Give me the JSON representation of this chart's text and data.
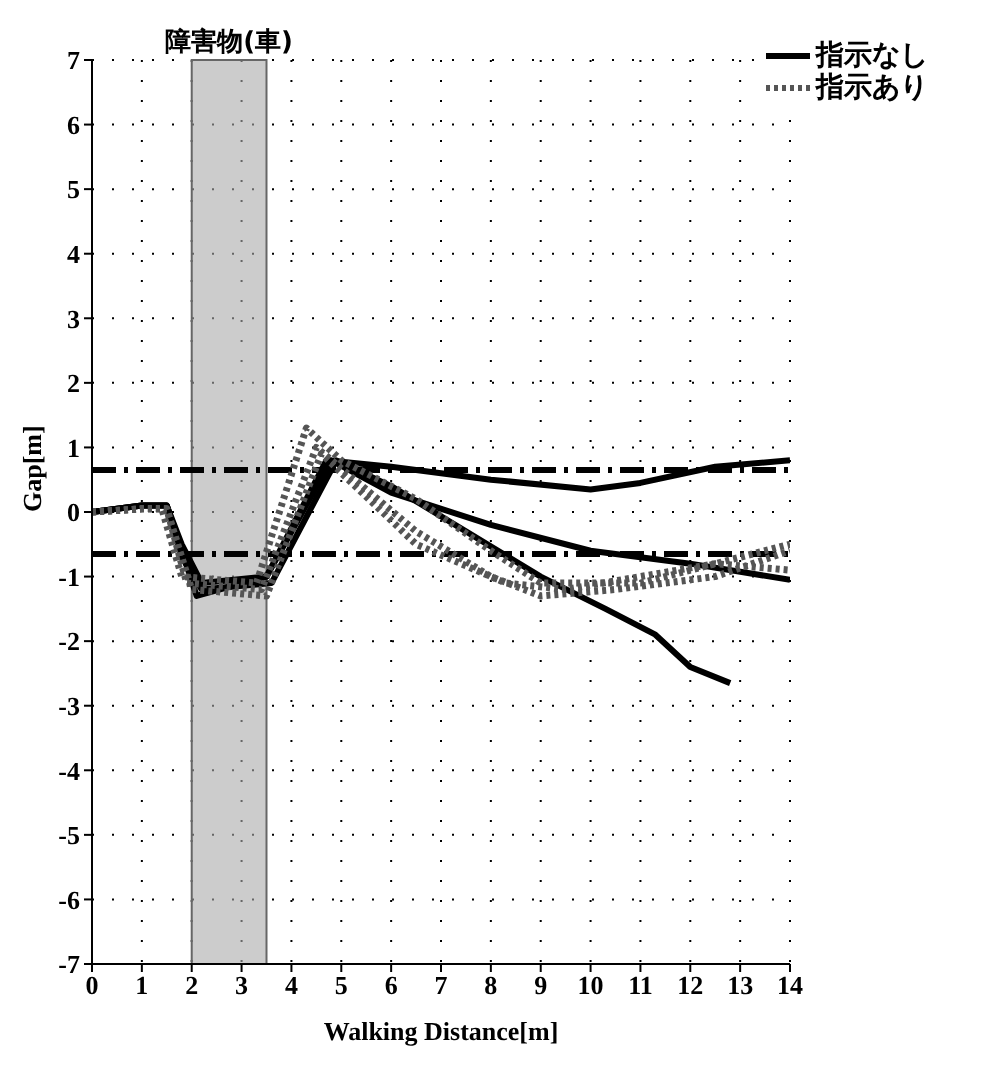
{
  "chart_data": {
    "type": "line",
    "xlabel": "Walking Distance[m]",
    "ylabel": "Gap[m]",
    "xlim": [
      0,
      14
    ],
    "xticks": [
      0,
      1,
      2,
      3,
      4,
      5,
      6,
      7,
      8,
      9,
      10,
      11,
      12,
      13,
      14
    ],
    "ylim": [
      -7,
      7
    ],
    "yticks": [
      -7,
      -6,
      -5,
      -4,
      -3,
      -2,
      -1,
      0,
      1,
      2,
      3,
      4,
      5,
      6,
      7
    ],
    "grid": true,
    "legend": "top right",
    "marker": "none",
    "series": [
      {
        "name": "指示なし",
        "color": "#000000",
        "line_style": "solid",
        "x": [
          0,
          1,
          1.5,
          1.8,
          2.2,
          3.5,
          4.7,
          6,
          8,
          10,
          11,
          12.5,
          14
        ],
        "values": [
          0,
          0.1,
          0.1,
          -0.5,
          -1.1,
          -1.0,
          0.8,
          0.7,
          0.5,
          0.35,
          0.45,
          0.7,
          0.8
        ]
      },
      {
        "color": "#000000",
        "line_style": "solid",
        "x": [
          0,
          1,
          1.5,
          1.8,
          2.1,
          3.5,
          4.8,
          6,
          8,
          10,
          12,
          14
        ],
        "values": [
          0,
          0.1,
          0.1,
          -0.6,
          -1.3,
          -1.0,
          0.8,
          0.3,
          -0.2,
          -0.6,
          -0.8,
          -1.05
        ]
      },
      {
        "color": "#000000",
        "line_style": "solid",
        "x": [
          0,
          1,
          1.5,
          1.8,
          2.2,
          3.6,
          4.9,
          6,
          7.5,
          9,
          10.3,
          11.3,
          12,
          12.8
        ],
        "values": [
          0,
          0.1,
          0.1,
          -0.7,
          -1.2,
          -1.1,
          0.8,
          0.4,
          -0.3,
          -1.0,
          -1.5,
          -1.9,
          -2.4,
          -2.65
        ]
      },
      {
        "name": "指示あり",
        "color": "#555555",
        "line_style": "dotted",
        "x": [
          0,
          1,
          1.4,
          1.8,
          3.3,
          4.3,
          5,
          6.5,
          8,
          9,
          11,
          13,
          14
        ],
        "values": [
          0,
          0.05,
          0.05,
          -1.0,
          -1.1,
          1.3,
          0.8,
          0.2,
          -0.6,
          -1.1,
          -1.1,
          -0.7,
          -0.5
        ]
      },
      {
        "color": "#555555",
        "line_style": "dotted",
        "x": [
          0,
          1,
          1.5,
          1.9,
          3.4,
          4.5,
          6.5,
          8,
          9,
          10.5,
          12.5,
          14
        ],
        "values": [
          0,
          0.05,
          0.05,
          -1.1,
          -1.2,
          1.0,
          -0.3,
          -1.0,
          -1.3,
          -1.2,
          -1.0,
          -0.6
        ]
      },
      {
        "color": "#555555",
        "line_style": "dotted",
        "x": [
          0,
          1,
          1.5,
          2,
          3.5,
          4.6,
          6.5,
          8.3,
          9.5,
          11,
          12.5,
          14
        ],
        "values": [
          0,
          0.05,
          0.05,
          -1.2,
          -1.3,
          0.9,
          -0.5,
          -1.1,
          -1.2,
          -1.0,
          -0.8,
          -0.9
        ]
      }
    ],
    "ref_lines": [
      {
        "axis": "y",
        "value": 0.65,
        "color": "#000000",
        "line_style": "dashdot"
      },
      {
        "axis": "y",
        "value": -0.65,
        "color": "#000000",
        "line_style": "dashdot"
      }
    ],
    "bands": [
      {
        "axis": "x",
        "from": 2,
        "to": 3.5,
        "color": "#aaaaaa",
        "label": "障害物(車)"
      }
    ]
  }
}
